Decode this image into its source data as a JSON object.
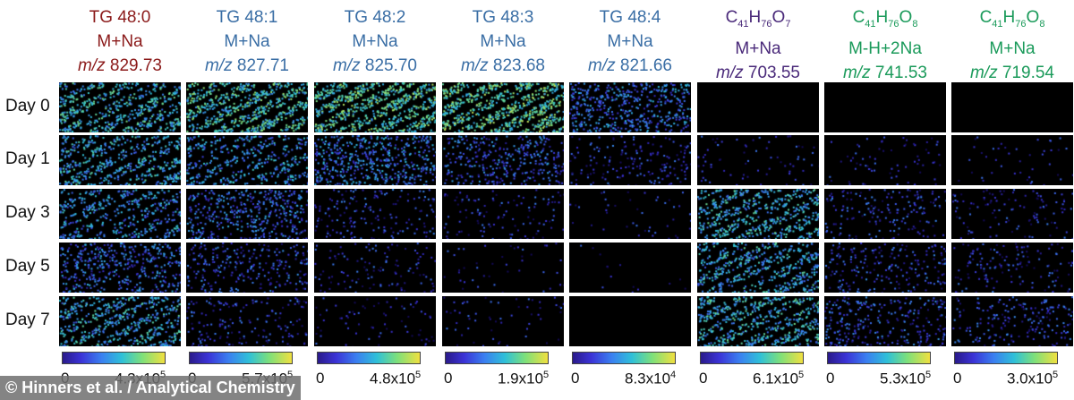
{
  "columns": [
    {
      "name": "TG 48:0",
      "adduct": "M+Na",
      "mz": "829.73",
      "color": "#8b1a1a",
      "formula": null,
      "max": "4.3",
      "exp": "5",
      "intensity": [
        0.62,
        0.55,
        0.45,
        0.3,
        0.55
      ]
    },
    {
      "name": "TG 48:1",
      "adduct": "M+Na",
      "mz": "827.71",
      "color": "#3a6ea5",
      "formula": null,
      "max": "5.7",
      "exp": "5",
      "intensity": [
        0.72,
        0.45,
        0.3,
        0.18,
        0.12
      ]
    },
    {
      "name": "TG 48:2",
      "adduct": "M+Na",
      "mz": "825.70",
      "color": "#3a6ea5",
      "formula": null,
      "max": "4.8",
      "exp": "5",
      "intensity": [
        0.78,
        0.35,
        0.12,
        0.08,
        0.05
      ]
    },
    {
      "name": "TG 48:3",
      "adduct": "M+Na",
      "mz": "823.68",
      "color": "#3a6ea5",
      "formula": null,
      "max": "1.9",
      "exp": "5",
      "intensity": [
        0.82,
        0.25,
        0.08,
        0.03,
        0.04
      ]
    },
    {
      "name": "TG 48:4",
      "adduct": "M+Na",
      "mz": "821.66",
      "color": "#3a6ea5",
      "formula": null,
      "max": "8.3",
      "exp": "4",
      "intensity": [
        0.35,
        0.12,
        0.03,
        0.01,
        0.0
      ]
    },
    {
      "name": null,
      "adduct": "M+Na",
      "mz": "703.55",
      "color": "#4a2a7a",
      "formula": {
        "c": "41",
        "h": "76",
        "o": "7"
      },
      "max": "6.1",
      "exp": "5",
      "intensity": [
        0.0,
        0.05,
        0.6,
        0.55,
        0.6
      ]
    },
    {
      "name": null,
      "adduct": "M-H+2Na",
      "mz": "741.53",
      "color": "#1a9a5a",
      "formula": {
        "c": "41",
        "h": "76",
        "o": "8"
      },
      "max": "5.3",
      "exp": "5",
      "intensity": [
        0.0,
        0.05,
        0.12,
        0.15,
        0.2
      ]
    },
    {
      "name": null,
      "adduct": "M+Na",
      "mz": "719.54",
      "color": "#1a9a5a",
      "formula": {
        "c": "41",
        "h": "76",
        "o": "8"
      },
      "max": "3.0",
      "exp": "5",
      "intensity": [
        0.0,
        0.03,
        0.08,
        0.1,
        0.14
      ]
    }
  ],
  "rows": [
    "Day 0",
    "Day 1",
    "Day 3",
    "Day 5",
    "Day 7"
  ],
  "mz_prefix": "m/z",
  "colorbar_min": "0",
  "colorbar_base": "x10",
  "credit": "© Hinners et al. / Analytical Chemistry"
}
